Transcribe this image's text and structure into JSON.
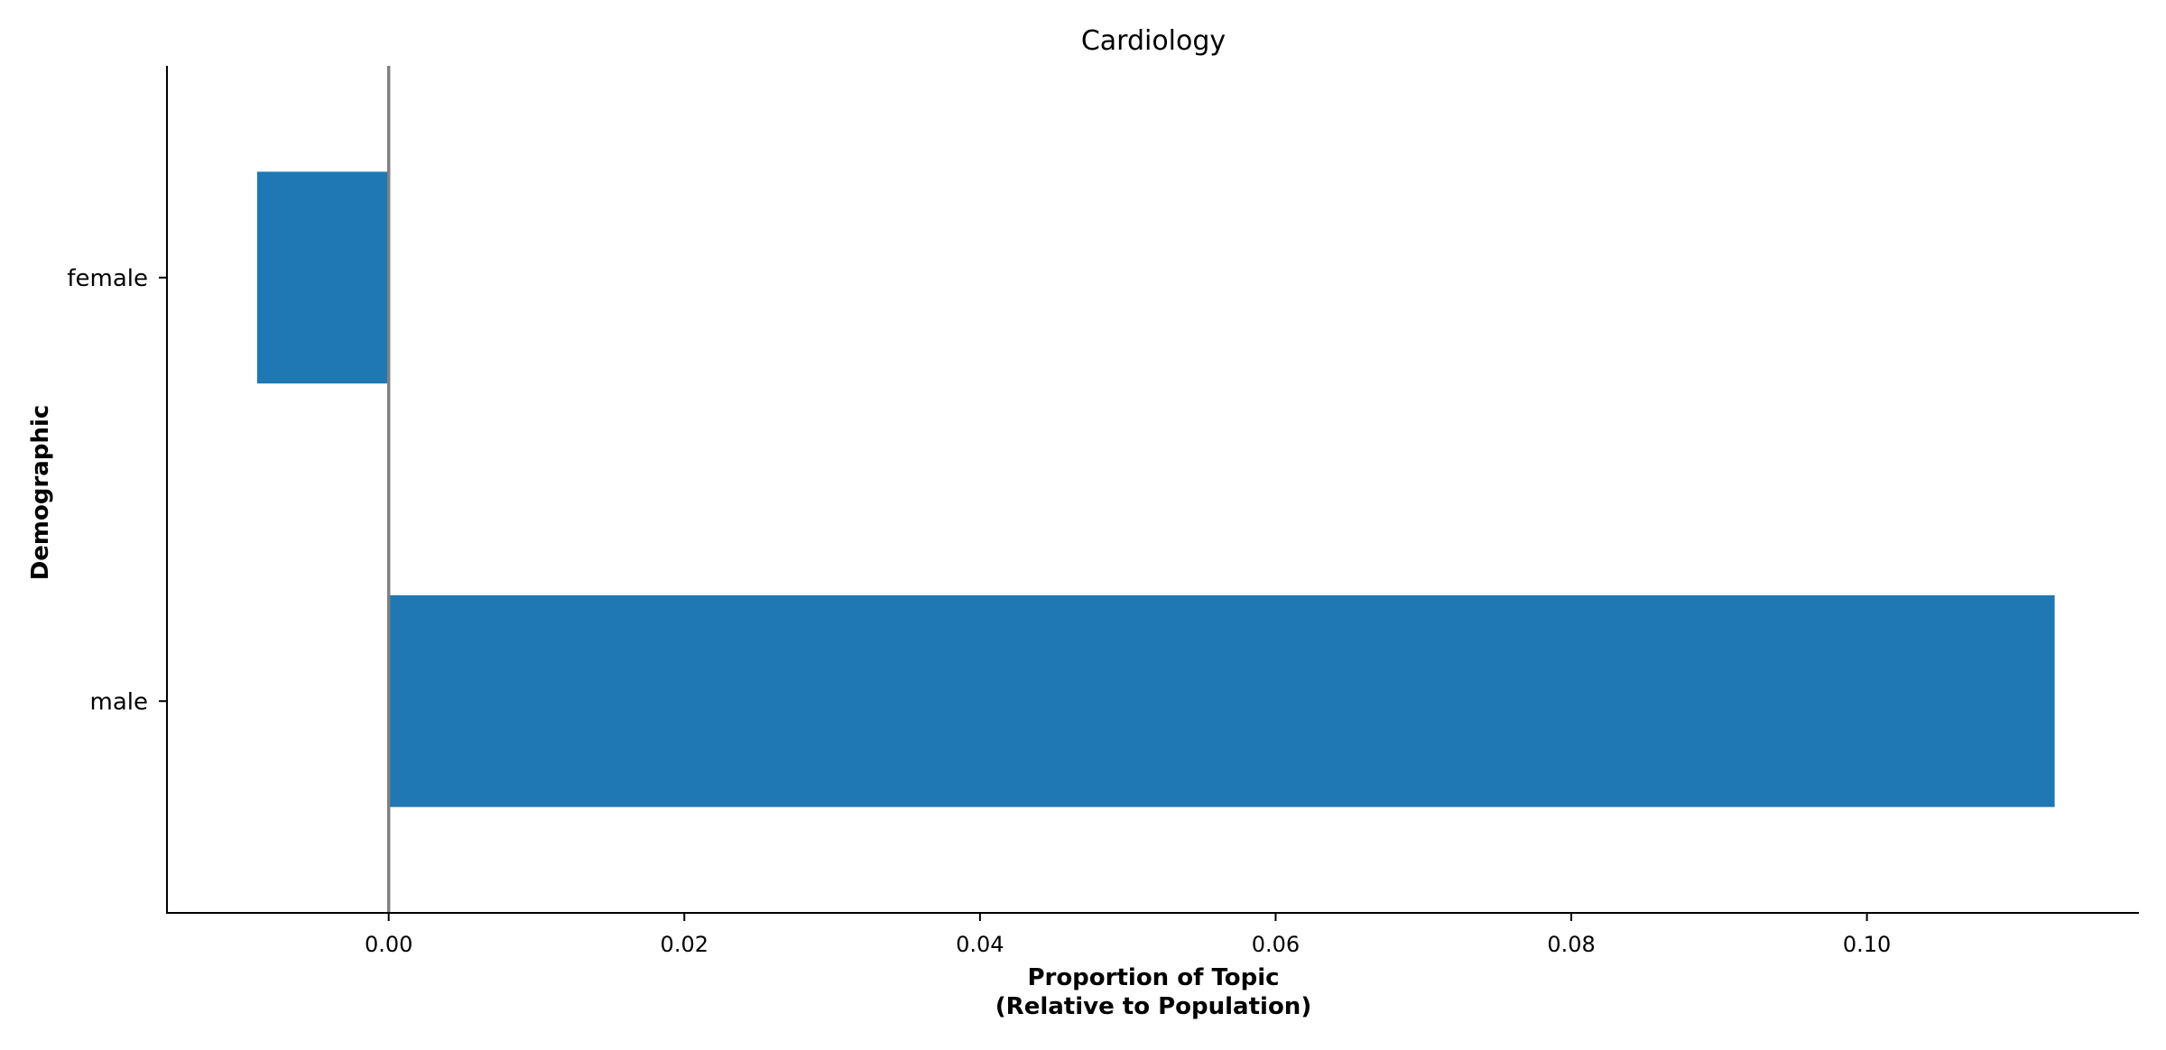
{
  "chart_data": {
    "type": "bar",
    "orientation": "horizontal",
    "title": "Cardiology",
    "xlabel_line1": "Proportion of Topic",
    "xlabel_line2": "(Relative to Population)",
    "ylabel": "Demographic",
    "categories": [
      "female",
      "male"
    ],
    "values": [
      -0.0089,
      0.1127
    ],
    "xlim": [
      -0.015,
      0.1184
    ],
    "x_ticks": [
      0.0,
      0.02,
      0.04,
      0.06,
      0.08,
      0.1
    ],
    "x_tick_labels": [
      "0.00",
      "0.02",
      "0.04",
      "0.06",
      "0.08",
      "0.10"
    ],
    "reference_line_x": 0,
    "grid": false,
    "bar_color": "#1f77b4",
    "reference_line_color": "#808080"
  }
}
